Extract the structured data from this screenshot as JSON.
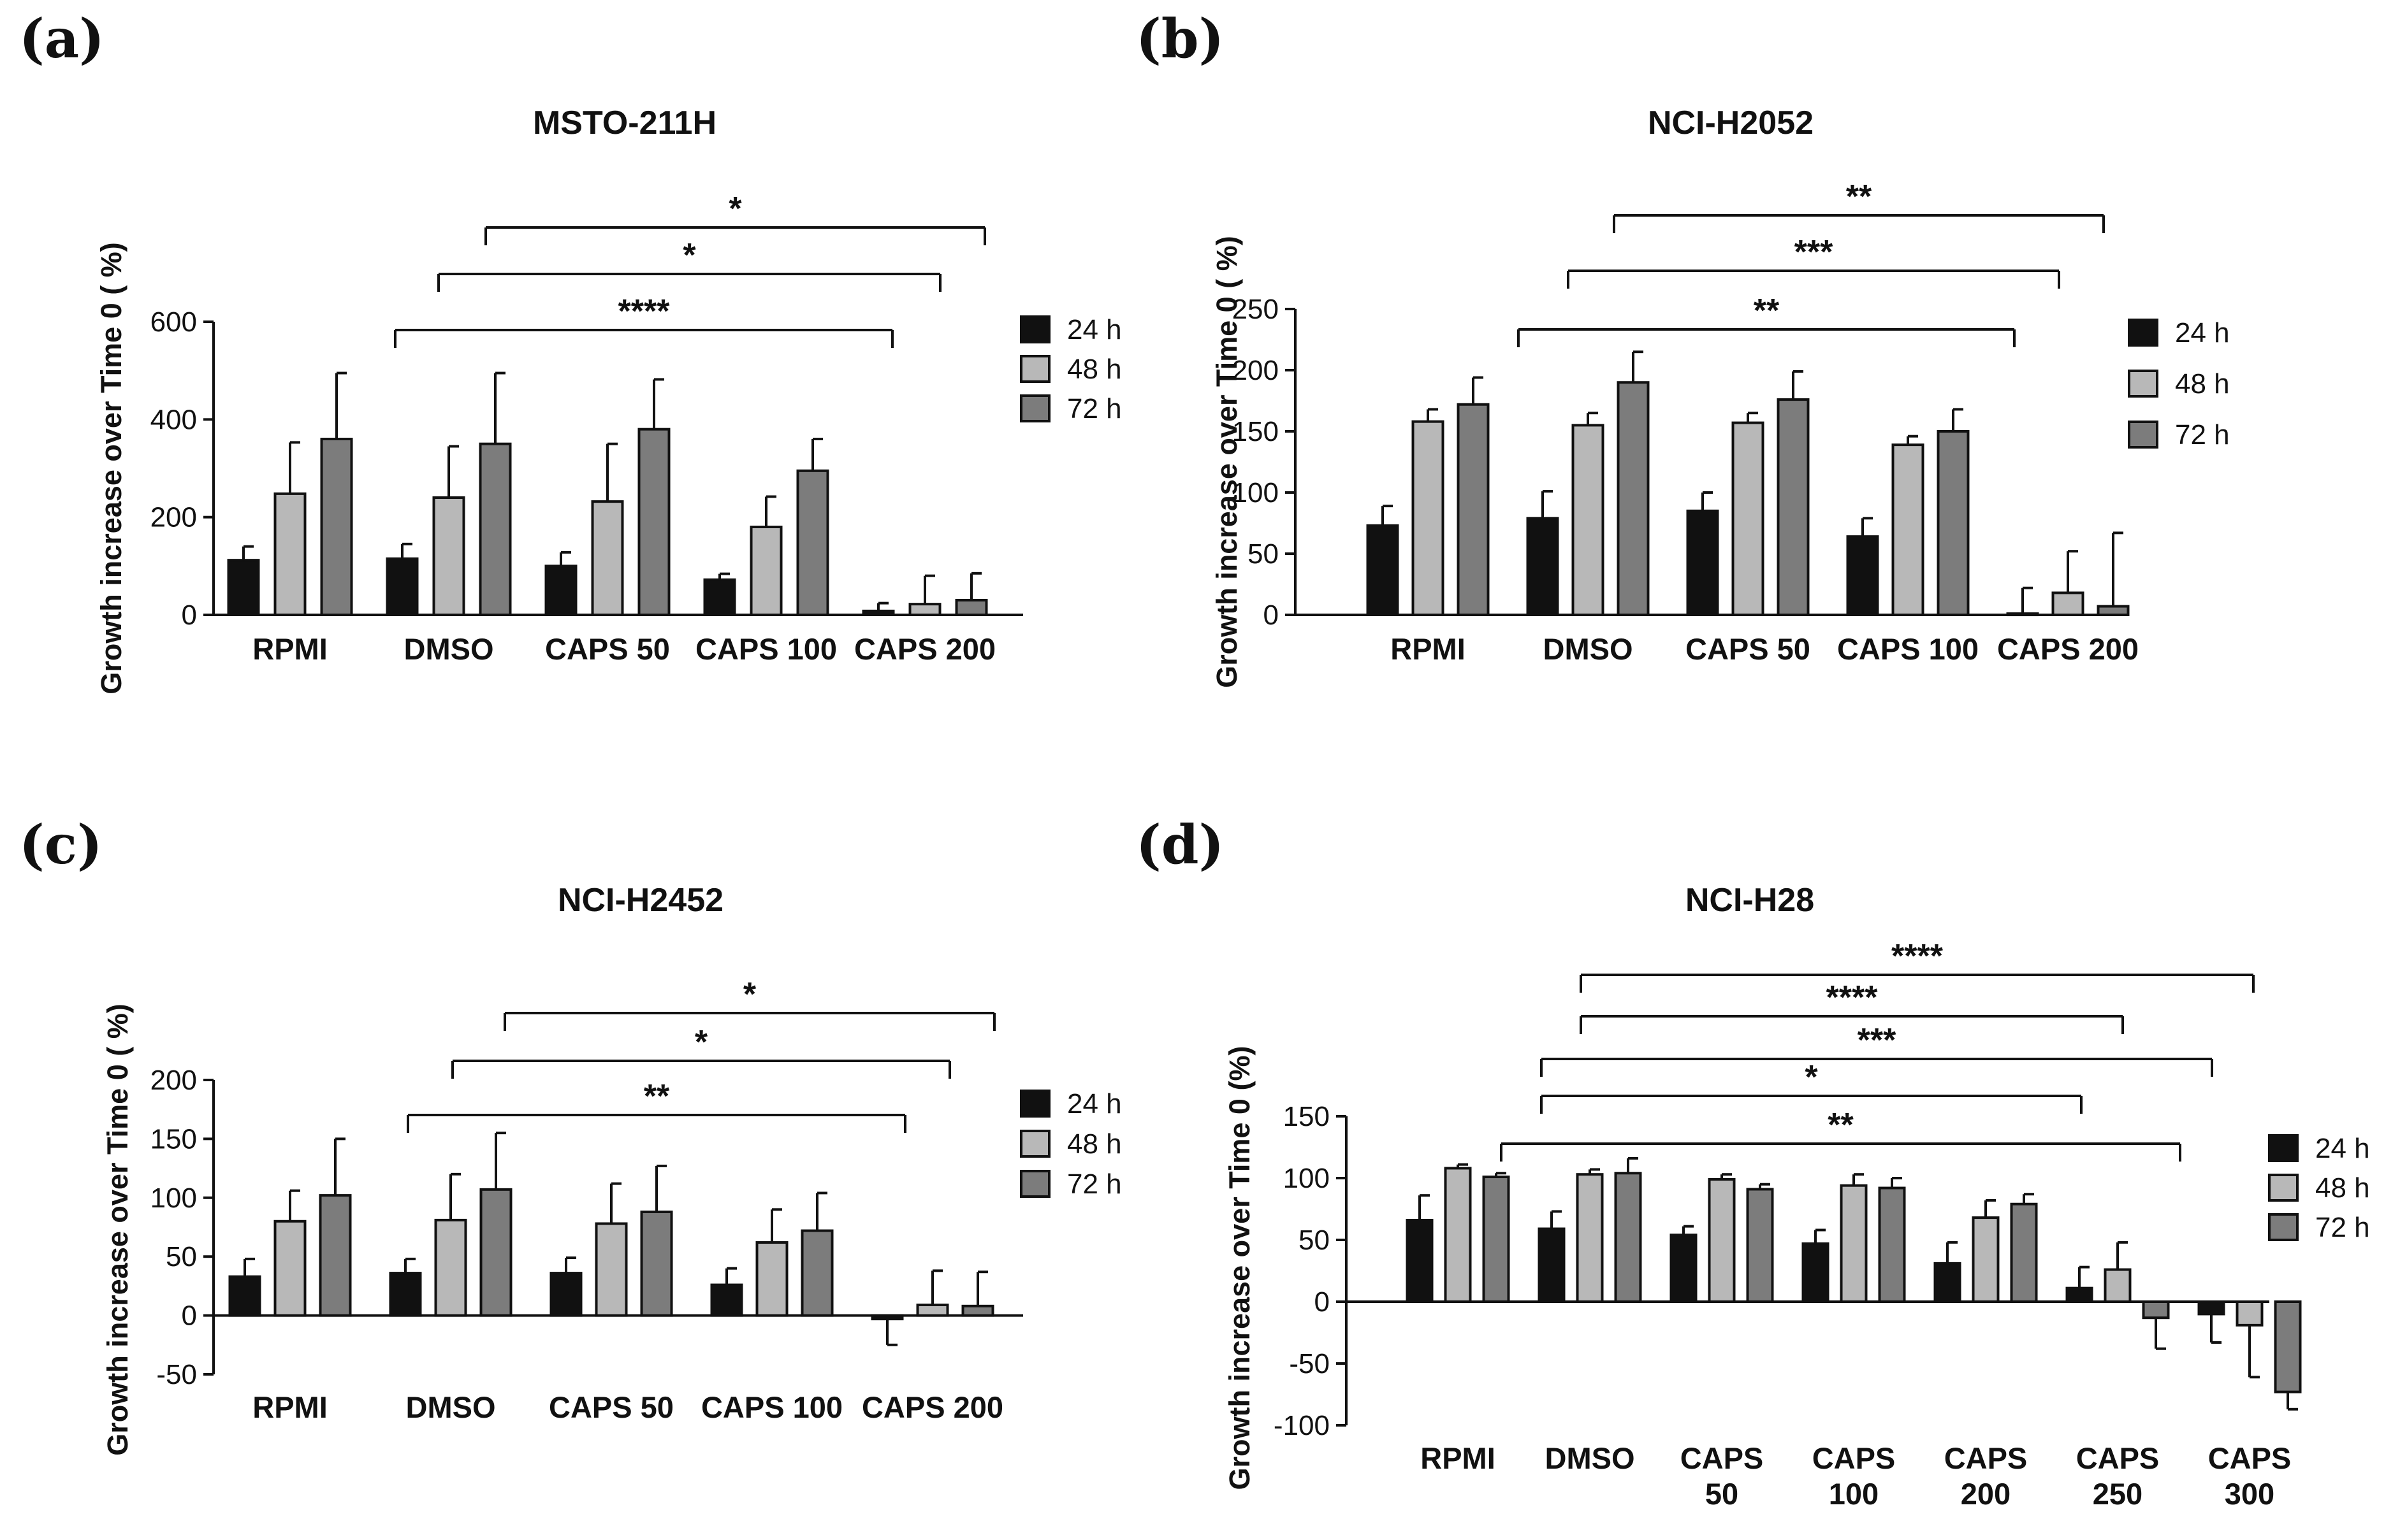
{
  "chart_data": [
    {
      "panel": "(a)",
      "type": "bar",
      "title": "MSTO-211H",
      "ylabel": "Growth increase over Time 0 ( %)",
      "xlabel": "",
      "ylim": [
        0,
        600
      ],
      "yticks": [
        0,
        200,
        400,
        600
      ],
      "categories": [
        [
          "RPMI"
        ],
        [
          "DMSO"
        ],
        [
          "CAPS 50"
        ],
        [
          "CAPS 100"
        ],
        [
          "CAPS 200"
        ]
      ],
      "series": [
        {
          "name": "24 h",
          "color": "#111111",
          "values": [
            112,
            115,
            100,
            72,
            8
          ],
          "errors": [
            28,
            30,
            28,
            12,
            16
          ]
        },
        {
          "name": "48 h",
          "color": "#b8b8b8",
          "values": [
            248,
            240,
            232,
            180,
            22
          ],
          "errors": [
            105,
            105,
            118,
            62,
            58
          ]
        },
        {
          "name": "72 h",
          "color": "#7c7c7c",
          "values": [
            360,
            350,
            380,
            295,
            30
          ],
          "errors": [
            135,
            145,
            102,
            65,
            55
          ]
        }
      ],
      "significance": [
        {
          "label": "****",
          "from": 1,
          "to": 4,
          "to_series": 0
        },
        {
          "label": "*",
          "from": 1,
          "to": 4,
          "to_series": 1
        },
        {
          "label": "*",
          "from": 1,
          "to": 4,
          "to_series": 2
        }
      ],
      "legend_position": "right"
    },
    {
      "panel": "(b)",
      "type": "bar",
      "title": "NCI-H2052",
      "ylabel": "Growth increase over Time 0 ( %)",
      "xlabel": "",
      "ylim": [
        0,
        250
      ],
      "yticks": [
        0,
        50,
        100,
        150,
        200,
        250
      ],
      "categories": [
        [
          "RPMI"
        ],
        [
          "DMSO"
        ],
        [
          "CAPS 50"
        ],
        [
          "CAPS 100"
        ],
        [
          "CAPS 200"
        ]
      ],
      "series": [
        {
          "name": "24 h",
          "color": "#111111",
          "values": [
            73,
            79,
            85,
            64,
            1
          ],
          "errors": [
            16,
            22,
            15,
            15,
            21
          ]
        },
        {
          "name": "48 h",
          "color": "#b8b8b8",
          "values": [
            158,
            155,
            157,
            139,
            18
          ],
          "errors": [
            10,
            10,
            8,
            7,
            34
          ]
        },
        {
          "name": "72 h",
          "color": "#7c7c7c",
          "values": [
            172,
            190,
            176,
            150,
            7
          ],
          "errors": [
            22,
            25,
            23,
            18,
            60
          ]
        }
      ],
      "significance": [
        {
          "label": "**",
          "from": 1,
          "to": 4,
          "to_series": 0
        },
        {
          "label": "***",
          "from": 1,
          "to": 4,
          "to_series": 1
        },
        {
          "label": "**",
          "from": 1,
          "to": 4,
          "to_series": 2
        }
      ],
      "legend_position": "right"
    },
    {
      "panel": "(c)",
      "type": "bar",
      "title": "NCI-H2452",
      "ylabel": "Growth increase over Time 0 ( %)",
      "xlabel": "",
      "ylim": [
        -50,
        200
      ],
      "yticks": [
        -50,
        0,
        50,
        100,
        150,
        200
      ],
      "categories": [
        [
          "RPMI"
        ],
        [
          "DMSO"
        ],
        [
          "CAPS 50"
        ],
        [
          "CAPS 100"
        ],
        [
          "CAPS 200"
        ]
      ],
      "series": [
        {
          "name": "24 h",
          "color": "#111111",
          "values": [
            33,
            36,
            36,
            26,
            -3
          ],
          "errors": [
            15,
            12,
            13,
            14,
            22
          ]
        },
        {
          "name": "48 h",
          "color": "#b8b8b8",
          "values": [
            80,
            81,
            78,
            62,
            9
          ],
          "errors": [
            26,
            39,
            34,
            28,
            29
          ]
        },
        {
          "name": "72 h",
          "color": "#7c7c7c",
          "values": [
            102,
            107,
            88,
            72,
            8
          ],
          "errors": [
            48,
            48,
            39,
            32,
            29
          ]
        }
      ],
      "significance": [
        {
          "label": "**",
          "from": 1,
          "to": 4,
          "to_series": 0
        },
        {
          "label": "*",
          "from": 1,
          "to": 4,
          "to_series": 1
        },
        {
          "label": "*",
          "from": 1,
          "to": 4,
          "to_series": 2
        }
      ],
      "legend_position": "right"
    },
    {
      "panel": "(d)",
      "type": "bar",
      "title": "NCI-H28",
      "ylabel": "Growth increase over Time 0 (%)",
      "xlabel": "",
      "ylim": [
        -100,
        150
      ],
      "yticks": [
        -100,
        -50,
        0,
        50,
        100,
        150
      ],
      "categories": [
        [
          "RPMI"
        ],
        [
          "DMSO"
        ],
        [
          "CAPS",
          "50"
        ],
        [
          "CAPS",
          "100"
        ],
        [
          "CAPS",
          "200"
        ],
        [
          "CAPS",
          "250"
        ],
        [
          "CAPS",
          "300"
        ]
      ],
      "series": [
        {
          "name": "24 h",
          "color": "#111111",
          "values": [
            66,
            59,
            54,
            47,
            31,
            11,
            -10
          ],
          "errors": [
            20,
            14,
            7,
            11,
            17,
            17,
            23
          ]
        },
        {
          "name": "48 h",
          "color": "#b8b8b8",
          "values": [
            108,
            103,
            99,
            94,
            68,
            26,
            -19
          ],
          "errors": [
            3,
            4,
            4,
            9,
            14,
            22,
            42
          ]
        },
        {
          "name": "72 h",
          "color": "#7c7c7c",
          "values": [
            101,
            104,
            91,
            92,
            79,
            -13,
            -73
          ],
          "errors": [
            3,
            12,
            4,
            8,
            8,
            25,
            14
          ]
        }
      ],
      "significance": [
        {
          "label": "**",
          "from": 1,
          "to": 6,
          "to_series": 0
        },
        {
          "label": "*",
          "from": 1,
          "to": 5,
          "to_series": 0
        },
        {
          "label": "***",
          "from": 1,
          "to": 6,
          "to_series": 0
        },
        {
          "label": "****",
          "from": 1,
          "to": 5,
          "to_series": 2
        },
        {
          "label": "****",
          "from": 1,
          "to": 6,
          "to_series": 2
        }
      ],
      "legend_position": "right"
    }
  ]
}
